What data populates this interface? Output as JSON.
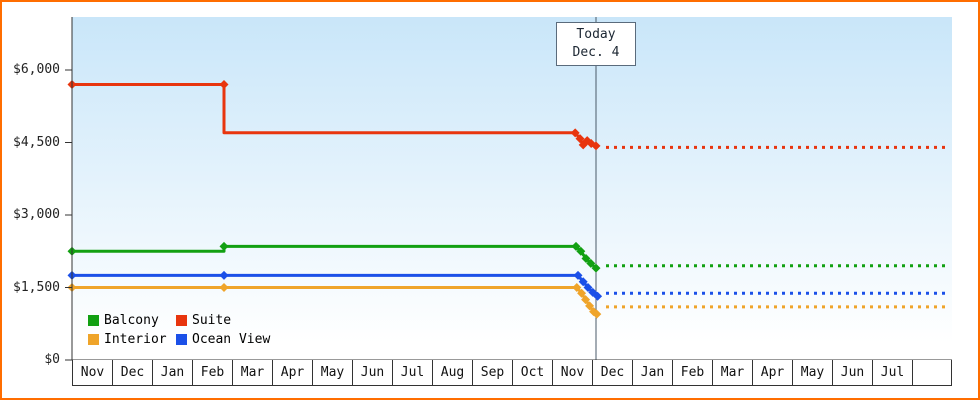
{
  "frame": {
    "border_color": "#ff6d00",
    "background": "#ffffff"
  },
  "plot": {
    "bg_gradient_top": "#c9e6f9",
    "bg_gradient_bottom": "#ffffff",
    "axis_color": "#333333",
    "today_line_color": "#4a5a68",
    "label_color": "#222222"
  },
  "chart_data": {
    "type": "line",
    "y_axis": {
      "tick_labels": [
        "$0",
        "$1,500",
        "$3,000",
        "$4,500",
        "$6,000"
      ],
      "tick_values": [
        0,
        1500,
        3000,
        4500,
        6000
      ],
      "value_max": 7100
    },
    "x_axis": {
      "month_labels": [
        "Nov",
        "Dec",
        "Jan",
        "Feb",
        "Mar",
        "Apr",
        "May",
        "Jun",
        "Jul",
        "Aug",
        "Sep",
        "Oct",
        "Nov",
        "Dec",
        "Jan",
        "Feb",
        "Mar",
        "Apr",
        "May",
        "Jun",
        "Jul"
      ],
      "trailing_empty_cells": 1
    },
    "today_marker": {
      "line1": "Today",
      "line2": "Dec. 4",
      "month_position": 13.1
    },
    "forecast": {
      "start_month": 13.35,
      "end_month": 21.9,
      "style": "dotted"
    },
    "series": [
      {
        "name": "Balcony",
        "color": "#12a012",
        "history": [
          [
            0,
            2250
          ],
          [
            3.8,
            2250
          ],
          [
            3.8,
            2350
          ],
          [
            12.6,
            2350
          ],
          [
            12.72,
            2250
          ],
          [
            12.85,
            2100
          ],
          [
            12.97,
            2000
          ],
          [
            13.1,
            1900
          ]
        ],
        "markers": [
          [
            0,
            2250
          ],
          [
            3.8,
            2350
          ],
          [
            12.6,
            2350
          ],
          [
            12.72,
            2250
          ],
          [
            12.85,
            2100
          ],
          [
            12.97,
            2000
          ],
          [
            13.1,
            1900
          ]
        ],
        "forecast_value": 1950
      },
      {
        "name": "Suite",
        "color": "#e8350e",
        "history": [
          [
            0,
            5700
          ],
          [
            3.8,
            5700
          ],
          [
            3.8,
            4700
          ],
          [
            12.58,
            4700
          ],
          [
            12.7,
            4580
          ],
          [
            12.78,
            4450
          ],
          [
            12.88,
            4540
          ],
          [
            12.98,
            4480
          ],
          [
            13.1,
            4430
          ]
        ],
        "markers": [
          [
            0,
            5700
          ],
          [
            3.8,
            5700
          ],
          [
            12.58,
            4700
          ],
          [
            12.7,
            4580
          ],
          [
            12.78,
            4450
          ],
          [
            12.88,
            4540
          ],
          [
            12.98,
            4480
          ],
          [
            13.1,
            4430
          ]
        ],
        "forecast_value": 4400
      },
      {
        "name": "Interior",
        "color": "#efa42a",
        "history": [
          [
            0,
            1500
          ],
          [
            3.8,
            1500
          ],
          [
            12.62,
            1500
          ],
          [
            12.74,
            1380
          ],
          [
            12.84,
            1250
          ],
          [
            12.94,
            1120
          ],
          [
            13.04,
            1000
          ],
          [
            13.12,
            950
          ]
        ],
        "markers": [
          [
            0,
            1500
          ],
          [
            3.8,
            1500
          ],
          [
            12.62,
            1500
          ],
          [
            12.74,
            1380
          ],
          [
            12.84,
            1250
          ],
          [
            12.94,
            1120
          ],
          [
            13.04,
            1000
          ],
          [
            13.12,
            950
          ]
        ],
        "forecast_value": 1100
      },
      {
        "name": "Ocean View",
        "color": "#1b50e8",
        "history": [
          [
            0,
            1750
          ],
          [
            3.8,
            1750
          ],
          [
            12.65,
            1750
          ],
          [
            12.78,
            1620
          ],
          [
            12.9,
            1500
          ],
          [
            13.02,
            1400
          ],
          [
            13.14,
            1320
          ]
        ],
        "markers": [
          [
            0,
            1750
          ],
          [
            3.8,
            1750
          ],
          [
            12.65,
            1750
          ],
          [
            12.78,
            1620
          ],
          [
            12.9,
            1500
          ],
          [
            13.02,
            1400
          ],
          [
            13.14,
            1320
          ]
        ],
        "forecast_value": 1380
      }
    ],
    "legend": {
      "labels": [
        "Balcony",
        "Suite",
        "Interior",
        "Ocean View"
      ]
    }
  }
}
